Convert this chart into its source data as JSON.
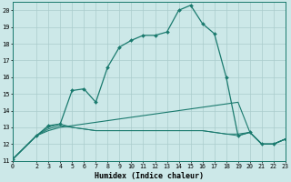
{
  "xlabel": "Humidex (Indice chaleur)",
  "background_color": "#cce8e8",
  "grid_color": "#aacccc",
  "line_color": "#1a7a6e",
  "xlim": [
    0,
    23
  ],
  "ylim": [
    11,
    20.5
  ],
  "xticks": [
    0,
    2,
    3,
    4,
    5,
    6,
    7,
    8,
    9,
    10,
    11,
    12,
    13,
    14,
    15,
    16,
    17,
    18,
    19,
    20,
    21,
    22,
    23
  ],
  "yticks": [
    11,
    12,
    13,
    14,
    15,
    16,
    17,
    18,
    19,
    20
  ],
  "main_x": [
    0,
    2,
    3,
    4,
    5,
    6,
    7,
    8,
    9,
    10,
    11,
    12,
    13,
    14,
    15,
    16,
    17,
    18,
    19,
    20,
    21,
    22,
    23
  ],
  "main_y": [
    11.1,
    12.5,
    13.1,
    13.2,
    15.2,
    15.3,
    14.5,
    16.6,
    17.8,
    18.2,
    18.5,
    18.5,
    18.7,
    20.0,
    20.3,
    19.2,
    18.6,
    16.0,
    12.5,
    12.7,
    12.0,
    12.0,
    12.3
  ],
  "diag_x": [
    0,
    2,
    3,
    4,
    5,
    6,
    7,
    8,
    9,
    10,
    11,
    12,
    13,
    14,
    15,
    16,
    17,
    18,
    19,
    20,
    21,
    22,
    23
  ],
  "diag_y": [
    11.1,
    12.5,
    12.8,
    13.0,
    13.1,
    13.2,
    13.3,
    13.4,
    13.5,
    13.6,
    13.7,
    13.8,
    13.9,
    14.0,
    14.1,
    14.2,
    14.3,
    14.4,
    14.5,
    12.7,
    12.0,
    12.0,
    12.3
  ],
  "flat1_x": [
    0,
    2,
    3,
    4,
    5,
    6,
    7,
    8,
    9,
    10,
    11,
    12,
    13,
    14,
    15,
    16,
    17,
    18,
    19,
    20,
    21,
    22,
    23
  ],
  "flat1_y": [
    11.1,
    12.5,
    13.0,
    13.2,
    13.0,
    12.9,
    12.8,
    12.8,
    12.8,
    12.8,
    12.8,
    12.8,
    12.8,
    12.8,
    12.8,
    12.8,
    12.7,
    12.6,
    12.6,
    12.7,
    12.0,
    12.0,
    12.3
  ],
  "flat2_x": [
    0,
    2,
    3,
    4,
    5,
    6,
    7,
    8,
    9,
    10,
    11,
    12,
    13,
    14,
    15,
    16,
    17,
    18,
    19,
    20,
    21,
    22,
    23
  ],
  "flat2_y": [
    11.1,
    12.5,
    12.9,
    13.1,
    13.0,
    12.9,
    12.8,
    12.8,
    12.8,
    12.8,
    12.8,
    12.8,
    12.8,
    12.8,
    12.8,
    12.8,
    12.7,
    12.6,
    12.5,
    12.7,
    12.0,
    12.0,
    12.3
  ]
}
